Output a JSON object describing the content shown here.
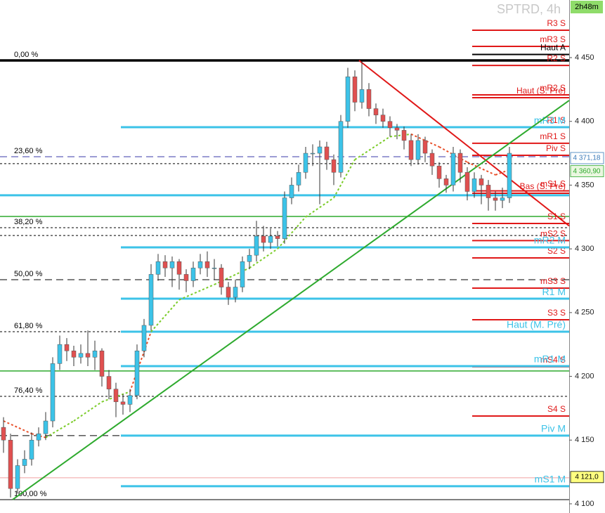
{
  "chart_data": {
    "type": "candlestick",
    "title": "SPTRD, 4h",
    "timer": "2h48m",
    "xlim": [
      -0.5,
      80.5
    ],
    "ylim": [
      4092.8,
      4495.2
    ],
    "yticks": [
      {
        "value": 4100,
        "label": "4 100"
      },
      {
        "value": 4150,
        "label": "4 150"
      },
      {
        "value": 4200,
        "label": "4 200"
      },
      {
        "value": 4250,
        "label": "4 250"
      },
      {
        "value": 4300,
        "label": "4 300"
      },
      {
        "value": 4350,
        "label": "4 350"
      },
      {
        "value": 4400,
        "label": "4 400"
      },
      {
        "value": 4450,
        "label": "4 450"
      }
    ],
    "up_color": "#3cc3e8",
    "down_color": "#e05050",
    "candles": [
      [
        4160,
        4168,
        4140,
        4150
      ],
      [
        4150,
        4155,
        4105,
        4112
      ],
      [
        4112,
        4135,
        4108,
        4130
      ],
      [
        4130,
        4142,
        4124,
        4135
      ],
      [
        4135,
        4156,
        4130,
        4150
      ],
      [
        4150,
        4160,
        4145,
        4155
      ],
      [
        4155,
        4172,
        4150,
        4165
      ],
      [
        4165,
        4215,
        4160,
        4210
      ],
      [
        4210,
        4232,
        4205,
        4225
      ],
      [
        4225,
        4230,
        4212,
        4220
      ],
      [
        4220,
        4224,
        4208,
        4215
      ],
      [
        4215,
        4225,
        4210,
        4218
      ],
      [
        4218,
        4236,
        4208,
        4215
      ],
      [
        4215,
        4228,
        4205,
        4220
      ],
      [
        4220,
        4222,
        4192,
        4200
      ],
      [
        4200,
        4205,
        4182,
        4190
      ],
      [
        4190,
        4195,
        4168,
        4180
      ],
      [
        4180,
        4186,
        4170,
        4178
      ],
      [
        4178,
        4190,
        4172,
        4185
      ],
      [
        4185,
        4225,
        4182,
        4220
      ],
      [
        4220,
        4245,
        4215,
        4240
      ],
      [
        4240,
        4288,
        4236,
        4280
      ],
      [
        4280,
        4296,
        4275,
        4290
      ],
      [
        4290,
        4295,
        4278,
        4285
      ],
      [
        4285,
        4294,
        4270,
        4290
      ],
      [
        4290,
        4292,
        4268,
        4280
      ],
      [
        4280,
        4284,
        4266,
        4275
      ],
      [
        4275,
        4290,
        4270,
        4285
      ],
      [
        4285,
        4296,
        4280,
        4290
      ],
      [
        4290,
        4298,
        4278,
        4285
      ],
      [
        4285,
        4292,
        4276,
        4285
      ],
      [
        4285,
        4288,
        4264,
        4270
      ],
      [
        4270,
        4274,
        4256,
        4262
      ],
      [
        4262,
        4276,
        4258,
        4270
      ],
      [
        4270,
        4294,
        4266,
        4290
      ],
      [
        4290,
        4300,
        4284,
        4295
      ],
      [
        4295,
        4322,
        4290,
        4310
      ],
      [
        4310,
        4318,
        4298,
        4305
      ],
      [
        4305,
        4316,
        4300,
        4310
      ],
      [
        4310,
        4314,
        4302,
        4308
      ],
      [
        4308,
        4345,
        4304,
        4340
      ],
      [
        4340,
        4356,
        4335,
        4350
      ],
      [
        4350,
        4366,
        4345,
        4360
      ],
      [
        4360,
        4380,
        4355,
        4375
      ],
      [
        4375,
        4382,
        4365,
        4375
      ],
      [
        4375,
        4385,
        4335,
        4380
      ],
      [
        4380,
        4384,
        4362,
        4370
      ],
      [
        4370,
        4374,
        4350,
        4360
      ],
      [
        4360,
        4405,
        4356,
        4400
      ],
      [
        4400,
        4442,
        4395,
        4435
      ],
      [
        4435,
        4440,
        4408,
        4415
      ],
      [
        4415,
        4447,
        4410,
        4425
      ],
      [
        4425,
        4430,
        4404,
        4410
      ],
      [
        4410,
        4414,
        4398,
        4405
      ],
      [
        4405,
        4410,
        4395,
        4400
      ],
      [
        4400,
        4404,
        4388,
        4395
      ],
      [
        4395,
        4398,
        4386,
        4393
      ],
      [
        4393,
        4396,
        4378,
        4385
      ],
      [
        4385,
        4390,
        4365,
        4370
      ],
      [
        4370,
        4390,
        4366,
        4385
      ],
      [
        4385,
        4388,
        4368,
        4375
      ],
      [
        4375,
        4378,
        4358,
        4365
      ],
      [
        4365,
        4368,
        4348,
        4355
      ],
      [
        4355,
        4358,
        4344,
        4350
      ],
      [
        4350,
        4380,
        4345,
        4375
      ],
      [
        4375,
        4378,
        4352,
        4360
      ],
      [
        4360,
        4364,
        4338,
        4345
      ],
      [
        4345,
        4360,
        4340,
        4355
      ],
      [
        4355,
        4358,
        4335,
        4350
      ],
      [
        4350,
        4354,
        4330,
        4340
      ],
      [
        4340,
        4345,
        4330,
        4338
      ],
      [
        4338,
        4348,
        4332,
        4340
      ],
      [
        4340,
        4380,
        4336,
        4375
      ]
    ],
    "ma": {
      "x": [
        0,
        4,
        6,
        10,
        14,
        18,
        21,
        25,
        30,
        35,
        39,
        43,
        47,
        50,
        55,
        58,
        62,
        66,
        70,
        72
      ],
      "values": [
        4165,
        4155,
        4152,
        4165,
        4180,
        4188,
        4235,
        4260,
        4272,
        4285,
        4300,
        4325,
        4340,
        4370,
        4388,
        4390,
        4380,
        4368,
        4358,
        4362
      ],
      "color_above": "#e8502a",
      "color_below": "#7ccc2a"
    },
    "trendlines": [
      {
        "color": "#e01818",
        "from": [
          50.6,
          4447.8
        ],
        "to": [
          80.5,
          4318
        ]
      },
      {
        "color": "#2eaa2e",
        "from": [
          1.3,
          4103.3
        ],
        "to": [
          80.5,
          4416.4
        ]
      }
    ],
    "levels": [
      {
        "label": "0,00 %",
        "value": 4447.8,
        "color": "#000000",
        "group": "fib",
        "style": "thick"
      },
      {
        "label": "23,60 %",
        "value": 4372.3,
        "color": "#3a3aa8",
        "group": "fib",
        "style": "dashed"
      },
      {
        "label": "38,20 %",
        "value": 4316.6,
        "color": "#000000",
        "group": "fib",
        "style": "dotted"
      },
      {
        "label": "50,00 %",
        "value": 4275.8,
        "color": "#000000",
        "group": "fib",
        "style": "dashed"
      },
      {
        "label": "61,80 %",
        "value": 4235,
        "color": "#000000",
        "group": "fib",
        "style": "dotted"
      },
      {
        "label": "76,40 %",
        "value": 4184.3,
        "color": "#000000",
        "group": "fib",
        "style": "dotted"
      },
      {
        "label": "100,00 %",
        "value": 4103.3,
        "color": "#000000",
        "group": "fib",
        "style": "solid"
      },
      {
        "label": "R3 S",
        "value": 4471.5,
        "color": "#e01818",
        "group": "S",
        "style": "solid"
      },
      {
        "label": "mR3 S",
        "value": 4458.8,
        "color": "#e01818",
        "group": "S",
        "style": "solid"
      },
      {
        "label": "Haut A",
        "value": 4452.5,
        "color": "#000000",
        "group": "S",
        "style": "solid"
      },
      {
        "label": "R2 S",
        "value": 4443.9,
        "color": "#e01818",
        "group": "S",
        "style": "solid"
      },
      {
        "label": "mR2 S",
        "value": 4420.8,
        "color": "#e01818",
        "group": "S",
        "style": "solid"
      },
      {
        "label": "Haut (S. Pré)",
        "value": 4418.6,
        "color": "#e01818",
        "group": "S",
        "style": "solid"
      },
      {
        "label": "R1 S",
        "value": 4395.4,
        "color": "#e01818",
        "group": "S",
        "style": "solid"
      },
      {
        "label": "mR1 S",
        "value": 4382.8,
        "color": "#e01818",
        "group": "S",
        "style": "solid"
      },
      {
        "label": "Piv S",
        "value": 4373.4,
        "color": "#e01818",
        "group": "S",
        "style": "solid"
      },
      {
        "label": "mS1 S",
        "value": 4345.5,
        "color": "#e01818",
        "group": "S",
        "style": "solid"
      },
      {
        "label": "Bas (S. Pré)",
        "value": 4343.6,
        "color": "#e01818",
        "group": "S",
        "style": "solid"
      },
      {
        "label": "S1 S",
        "value": 4319.9,
        "color": "#e01818",
        "group": "S",
        "style": "solid"
      },
      {
        "label": "mS2 S",
        "value": 4306.5,
        "color": "#e01818",
        "group": "S",
        "style": "solid"
      },
      {
        "label": "S2 S",
        "value": 4292.9,
        "color": "#e01818",
        "group": "S",
        "style": "solid"
      },
      {
        "label": "mS3 S",
        "value": 4269.2,
        "color": "#e01818",
        "group": "S",
        "style": "solid"
      },
      {
        "label": "S3 S",
        "value": 4244.4,
        "color": "#e01818",
        "group": "S",
        "style": "solid"
      },
      {
        "label": "mS4 S",
        "value": 4207.5,
        "color": "#e01818",
        "group": "S",
        "style": "solid"
      },
      {
        "label": "S4 S",
        "value": 4168.9,
        "color": "#e01818",
        "group": "S",
        "style": "solid"
      },
      {
        "label": "mR3 M",
        "value": 4395.4,
        "color": "#3cc3e8",
        "group": "M",
        "style": "solid"
      },
      {
        "label": "mR2 M",
        "value": 4301.2,
        "color": "#3cc3e8",
        "group": "M",
        "style": "solid"
      },
      {
        "label": "R1 M",
        "value": 4260.9,
        "color": "#3cc3e8",
        "group": "M",
        "style": "solid"
      },
      {
        "label": "Haut (M. Pré)",
        "value": 4235,
        "color": "#3cc3e8",
        "group": "M",
        "style": "solid"
      },
      {
        "label": "mR1 M",
        "value": 4208,
        "color": "#3cc3e8",
        "group": "M",
        "style": "solid"
      },
      {
        "label": "Piv M",
        "value": 4153.5,
        "color": "#3cc3e8",
        "group": "M",
        "style": "solid"
      },
      {
        "label": "mS1 M",
        "value": 4113.8,
        "color": "#3cc3e8",
        "group": "M",
        "style": "solid"
      }
    ],
    "lines": [
      {
        "value": 4366.8,
        "color": "#000000",
        "style": "dotted"
      },
      {
        "value": 4310.5,
        "color": "#000000",
        "style": "dotted"
      },
      {
        "value": 4342,
        "color": "#3cc3e8",
        "style": "cyan"
      },
      {
        "value": 4325.4,
        "color": "#2eaa2e",
        "style": "solid"
      },
      {
        "value": 4204.2,
        "color": "#2eaa2e",
        "style": "solid"
      },
      {
        "value": 4153.5,
        "color": "#000000",
        "style": "dashed"
      },
      {
        "value": 4120.4,
        "color": "#f0a0a0",
        "style": "thin"
      }
    ],
    "price_tags": [
      {
        "label": "4 371,18",
        "value": 4371.18,
        "color": "#3a7ab8",
        "background": "#ffffff"
      },
      {
        "label": "4 360,90",
        "value": 4360.9,
        "color": "#2eaa2e",
        "background": "#eaf7e0"
      },
      {
        "label": "4 121,0",
        "value": 4121.0,
        "color": "#000000",
        "background": "#ffff80"
      }
    ]
  }
}
